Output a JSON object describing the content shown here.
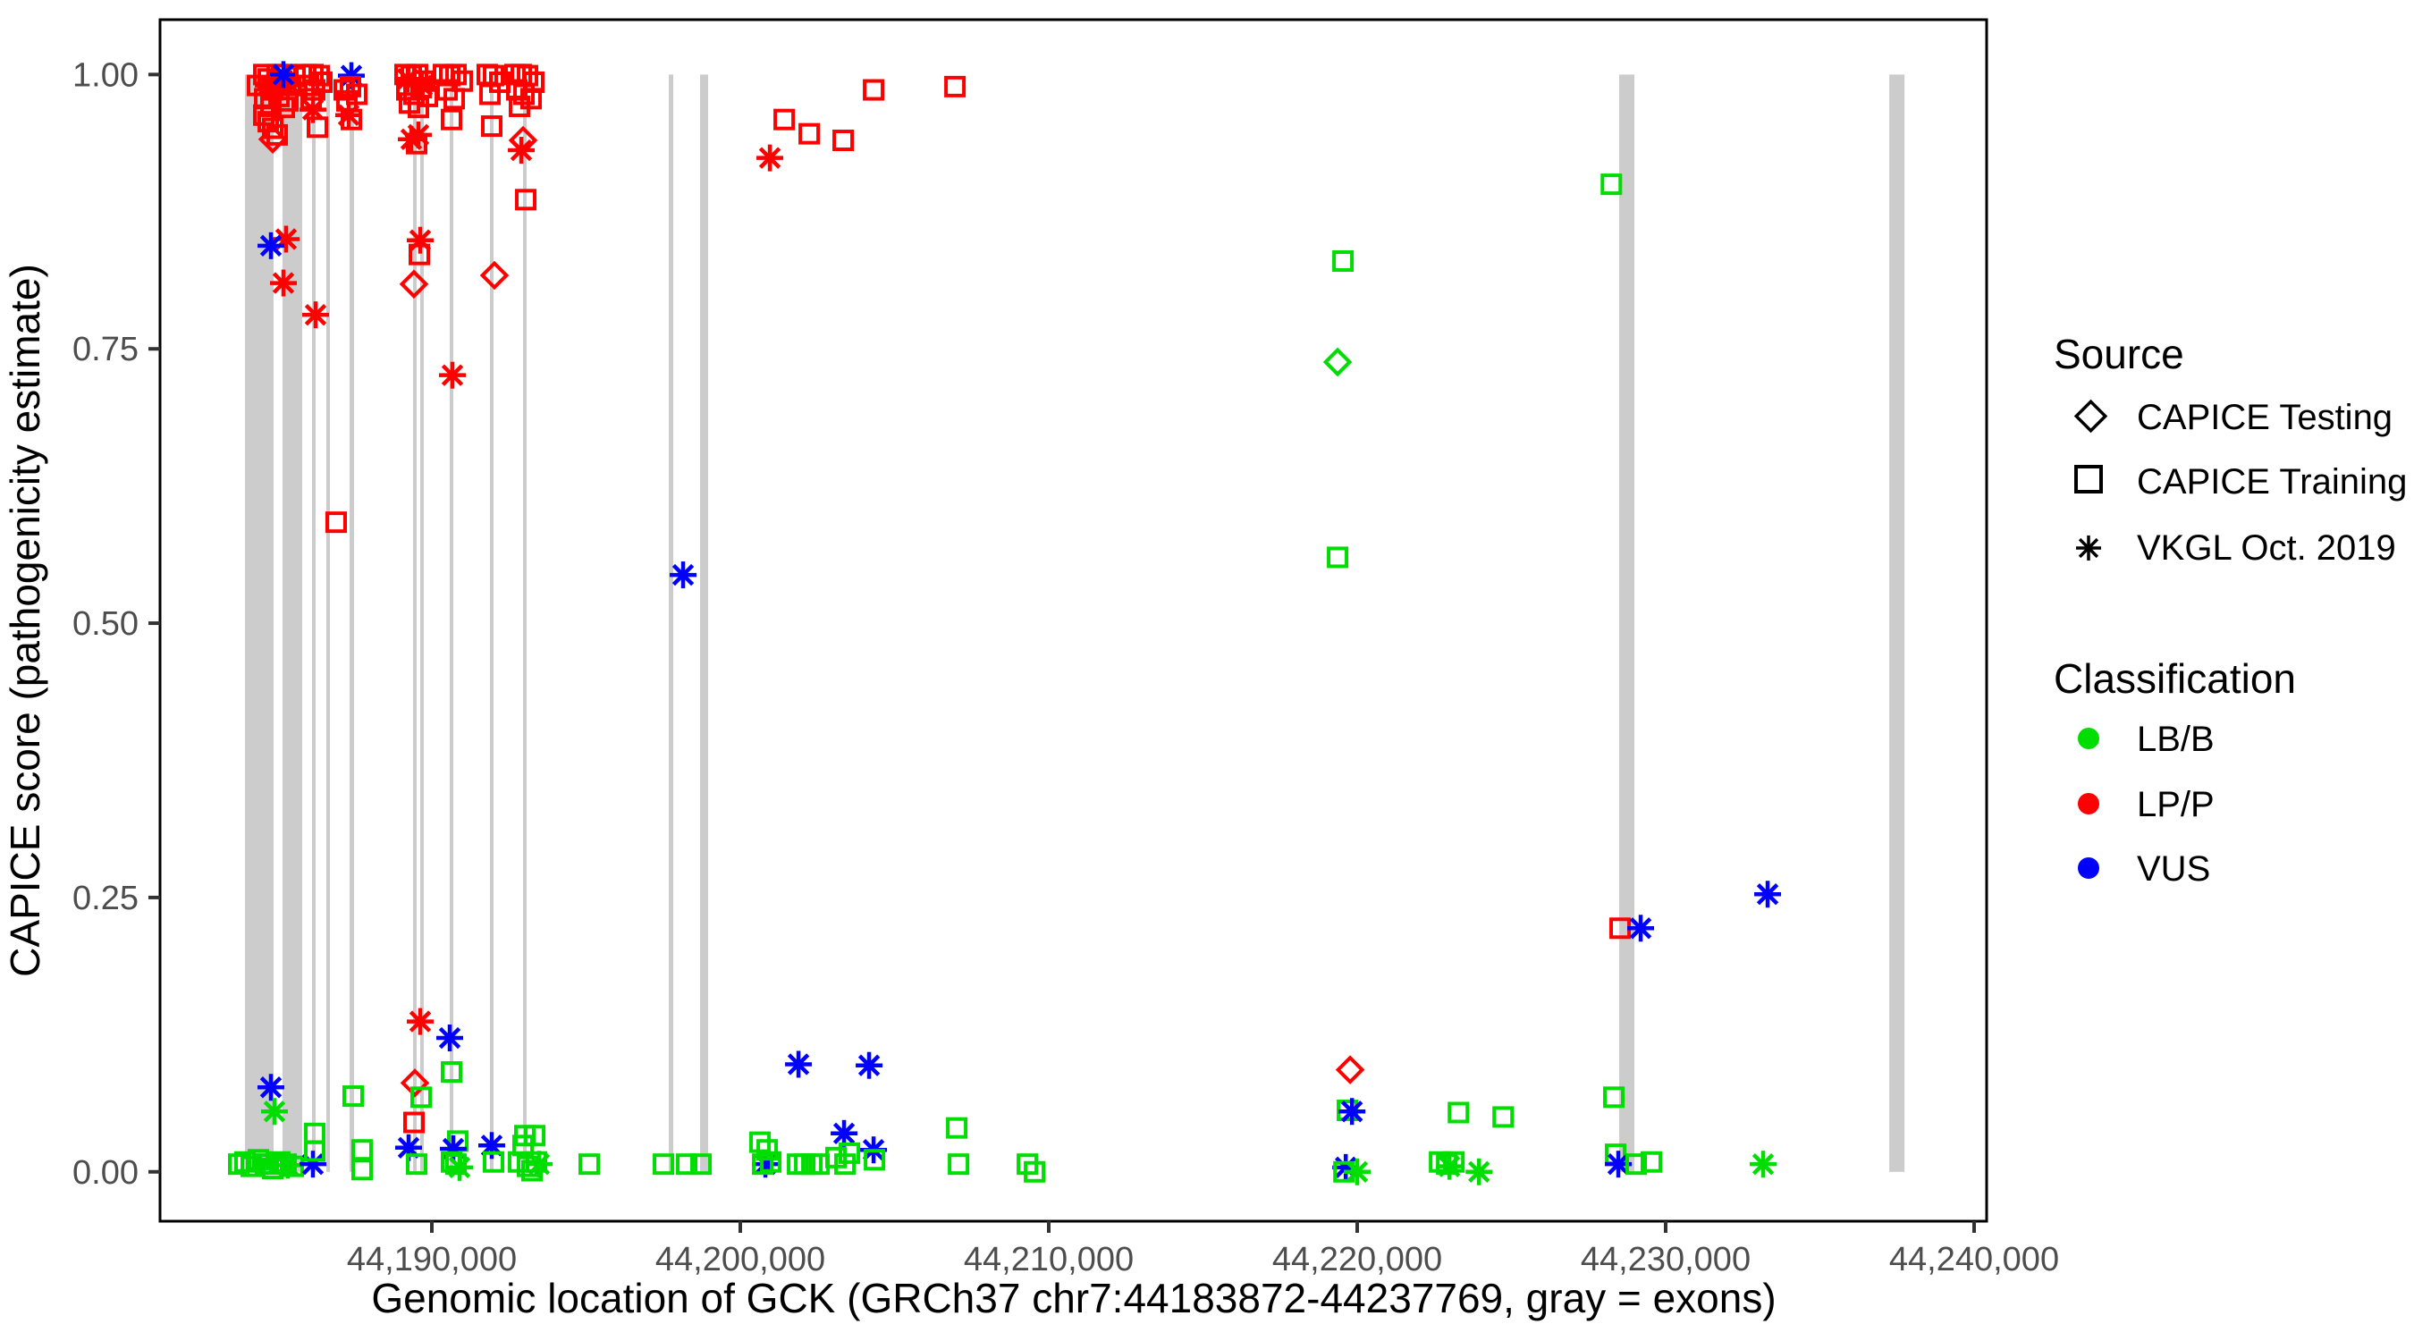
{
  "figure": {
    "background": "#ffffff",
    "panel_border_color": "#000000",
    "exon_color": "#cccccc",
    "tick_color": "#333333",
    "tick_label_color": "#4d4d4d"
  },
  "x_axis": {
    "title": "Genomic location of GCK (GRCh37 chr7:44183872-44237769, gray = exons)",
    "ticks": [
      {
        "value": 44190000,
        "label": "44,190,000"
      },
      {
        "value": 44200000,
        "label": "44,200,000"
      },
      {
        "value": 44210000,
        "label": "44,210,000"
      },
      {
        "value": 44220000,
        "label": "44,220,000"
      },
      {
        "value": 44230000,
        "label": "44,230,000"
      },
      {
        "value": 44240000,
        "label": "44,240,000"
      }
    ]
  },
  "y_axis": {
    "title": "CAPICE score (pathogenicity estimate)",
    "ticks": [
      {
        "value": 0.0,
        "label": "0.00"
      },
      {
        "value": 0.25,
        "label": "0.25"
      },
      {
        "value": 0.5,
        "label": "0.50"
      },
      {
        "value": 0.75,
        "label": "0.75"
      },
      {
        "value": 1.0,
        "label": "1.00"
      }
    ]
  },
  "legend": {
    "source": {
      "title": "Source",
      "items": [
        {
          "label": "CAPICE Testing",
          "marker": "diamond"
        },
        {
          "label": "CAPICE Training",
          "marker": "square"
        },
        {
          "label": "VKGL Oct. 2019",
          "marker": "asterisk"
        }
      ]
    },
    "classification": {
      "title": "Classification",
      "items": [
        {
          "label": "LB/B",
          "color": "#00dd00"
        },
        {
          "label": "LP/P",
          "color": "#ff0000"
        },
        {
          "label": "VUS",
          "color": "#0000ff"
        }
      ]
    }
  },
  "chart_data": {
    "type": "scatter",
    "xlabel": "Genomic location of GCK (GRCh37 chr7:44183872-44237769, gray = exons)",
    "ylabel": "CAPICE score (pathogenicity estimate)",
    "xlim": [
      44181188,
      44240406
    ],
    "ylim": [
      -0.045,
      1.05
    ],
    "grid": false,
    "marker_codes": {
      "sq": "CAPICE Training (open square)",
      "di": "CAPICE Testing (open diamond)",
      "as": "VKGL Oct. 2019 (asterisk)"
    },
    "class_codes": {
      "g": "LB/B",
      "r": "LP/P",
      "b": "VUS"
    },
    "class_colors": {
      "g": "#00dd00",
      "r": "#ff0000",
      "b": "#0000ff"
    },
    "exons_bp": [
      [
        44183941,
        44184869
      ],
      [
        44185159,
        44185796
      ],
      [
        44186115,
        44186231
      ],
      [
        44186579,
        44186695
      ],
      [
        44187333,
        44187478
      ],
      [
        44189391,
        44189507
      ],
      [
        44189623,
        44189710
      ],
      [
        44190580,
        44190638
      ],
      [
        44191884,
        44191942
      ],
      [
        44192957,
        44193044
      ],
      [
        44197682,
        44197827
      ],
      [
        44198697,
        44198958
      ],
      [
        44228494,
        44228987
      ],
      [
        44237250,
        44237743
      ]
    ],
    "points": [
      [
        44184348,
        0.99,
        "sq",
        "r"
      ],
      [
        44184551,
        1.0,
        "sq",
        "r"
      ],
      [
        44184696,
        0.996,
        "sq",
        "r"
      ],
      [
        44184841,
        0.986,
        "sq",
        "r"
      ],
      [
        44184986,
        1.0,
        "sq",
        "r"
      ],
      [
        44185130,
        0.994,
        "sq",
        "r"
      ],
      [
        44185275,
        1.0,
        "sq",
        "r"
      ],
      [
        44185420,
        0.99,
        "sq",
        "r"
      ],
      [
        44185565,
        0.998,
        "sq",
        "r"
      ],
      [
        44184580,
        0.978,
        "sq",
        "r"
      ],
      [
        44185044,
        0.98,
        "sq",
        "r"
      ],
      [
        44185333,
        0.976,
        "sq",
        "r"
      ],
      [
        44184783,
        0.971,
        "sq",
        "r"
      ],
      [
        44185217,
        0.97,
        "sq",
        "r"
      ],
      [
        44184551,
        0.963,
        "sq",
        "r"
      ],
      [
        44184696,
        0.957,
        "sq",
        "r"
      ],
      [
        44184841,
        0.951,
        "sq",
        "r"
      ],
      [
        44184986,
        0.945,
        "sq",
        "r"
      ],
      [
        44184986,
        0.996,
        "as",
        "r"
      ],
      [
        44185333,
        0.993,
        "as",
        "r"
      ],
      [
        44184696,
        0.99,
        "as",
        "r"
      ],
      [
        44185188,
        1.0,
        "as",
        "b"
      ],
      [
        44184841,
        0.941,
        "di",
        "r"
      ],
      [
        44185275,
        0.85,
        "as",
        "r"
      ],
      [
        44184783,
        0.844,
        "as",
        "b"
      ],
      [
        44185188,
        0.81,
        "as",
        "r"
      ],
      [
        44186231,
        0.781,
        "as",
        "r"
      ],
      [
        44186898,
        0.592,
        "sq",
        "r"
      ],
      [
        44185913,
        1.0,
        "sq",
        "r"
      ],
      [
        44186145,
        1.0,
        "sq",
        "r"
      ],
      [
        44186348,
        0.999,
        "sq",
        "r"
      ],
      [
        44186000,
        0.99,
        "sq",
        "r"
      ],
      [
        44186203,
        0.986,
        "sq",
        "r"
      ],
      [
        44186435,
        0.993,
        "sq",
        "r"
      ],
      [
        44186087,
        0.978,
        "sq",
        "r"
      ],
      [
        44186290,
        0.952,
        "sq",
        "r"
      ],
      [
        44186145,
        0.968,
        "as",
        "r"
      ],
      [
        44187391,
        0.999,
        "as",
        "b"
      ],
      [
        44187159,
        0.986,
        "sq",
        "r"
      ],
      [
        44187362,
        0.989,
        "sq",
        "r"
      ],
      [
        44187565,
        0.982,
        "sq",
        "r"
      ],
      [
        44187246,
        0.976,
        "sq",
        "r"
      ],
      [
        44187391,
        0.959,
        "sq",
        "r"
      ],
      [
        44187304,
        0.963,
        "as",
        "r"
      ],
      [
        44189130,
        1.0,
        "sq",
        "r"
      ],
      [
        44189333,
        0.999,
        "sq",
        "r"
      ],
      [
        44189536,
        1.0,
        "sq",
        "r"
      ],
      [
        44189739,
        0.994,
        "sq",
        "r"
      ],
      [
        44189188,
        0.986,
        "sq",
        "r"
      ],
      [
        44189420,
        0.982,
        "sq",
        "r"
      ],
      [
        44189652,
        0.988,
        "sq",
        "r"
      ],
      [
        44189855,
        0.98,
        "sq",
        "r"
      ],
      [
        44189275,
        0.974,
        "sq",
        "r"
      ],
      [
        44189565,
        0.97,
        "sq",
        "r"
      ],
      [
        44189507,
        0.937,
        "sq",
        "r"
      ],
      [
        44189594,
        0.836,
        "sq",
        "r"
      ],
      [
        44189217,
        0.996,
        "as",
        "r"
      ],
      [
        44189681,
        0.99,
        "as",
        "r"
      ],
      [
        44189333,
        0.941,
        "as",
        "r"
      ],
      [
        44189565,
        0.945,
        "as",
        "r"
      ],
      [
        44189623,
        0.849,
        "as",
        "r"
      ],
      [
        44189420,
        0.809,
        "di",
        "r"
      ],
      [
        44190377,
        1.0,
        "sq",
        "r"
      ],
      [
        44190580,
        0.999,
        "sq",
        "r"
      ],
      [
        44190783,
        1.0,
        "sq",
        "r"
      ],
      [
        44190986,
        0.994,
        "sq",
        "r"
      ],
      [
        44190493,
        0.986,
        "sq",
        "r"
      ],
      [
        44190725,
        0.978,
        "sq",
        "r"
      ],
      [
        44190638,
        0.959,
        "sq",
        "r"
      ],
      [
        44190667,
        0.726,
        "as",
        "r"
      ],
      [
        44191797,
        1.0,
        "sq",
        "r"
      ],
      [
        44192000,
        0.999,
        "sq",
        "r"
      ],
      [
        44192203,
        0.993,
        "sq",
        "r"
      ],
      [
        44191884,
        0.982,
        "sq",
        "r"
      ],
      [
        44191942,
        0.953,
        "sq",
        "r"
      ],
      [
        44192029,
        0.817,
        "di",
        "r"
      ],
      [
        44192696,
        1.0,
        "sq",
        "r"
      ],
      [
        44192899,
        1.0,
        "sq",
        "r"
      ],
      [
        44193102,
        0.999,
        "sq",
        "r"
      ],
      [
        44193304,
        0.993,
        "sq",
        "r"
      ],
      [
        44192754,
        0.986,
        "sq",
        "r"
      ],
      [
        44192986,
        0.982,
        "sq",
        "r"
      ],
      [
        44193217,
        0.978,
        "sq",
        "r"
      ],
      [
        44192841,
        0.971,
        "sq",
        "r"
      ],
      [
        44192957,
        0.94,
        "di",
        "r"
      ],
      [
        44192899,
        0.931,
        "as",
        "r"
      ],
      [
        44193044,
        0.886,
        "sq",
        "r"
      ],
      [
        44201423,
        0.959,
        "sq",
        "r"
      ],
      [
        44202234,
        0.946,
        "sq",
        "r"
      ],
      [
        44203335,
        0.94,
        "sq",
        "r"
      ],
      [
        44204321,
        0.986,
        "sq",
        "r"
      ],
      [
        44206959,
        0.989,
        "sq",
        "r"
      ],
      [
        44200958,
        0.924,
        "as",
        "r"
      ],
      [
        44198146,
        0.544,
        "as",
        "b"
      ],
      [
        44189623,
        0.137,
        "as",
        "r"
      ],
      [
        44190580,
        0.122,
        "as",
        "b"
      ],
      [
        44190638,
        0.091,
        "sq",
        "g"
      ],
      [
        44189449,
        0.081,
        "di",
        "r"
      ],
      [
        44189652,
        0.068,
        "sq",
        "g"
      ],
      [
        44189420,
        0.045,
        "sq",
        "r"
      ],
      [
        44189246,
        0.022,
        "as",
        "b"
      ],
      [
        44189507,
        0.007,
        "sq",
        "g"
      ],
      [
        44184782,
        0.077,
        "as",
        "b"
      ],
      [
        44184898,
        0.055,
        "as",
        "g"
      ],
      [
        44183739,
        0.007,
        "sq",
        "g"
      ],
      [
        44183942,
        0.009,
        "sq",
        "g"
      ],
      [
        44184145,
        0.005,
        "sq",
        "g"
      ],
      [
        44184377,
        0.011,
        "sq",
        "g"
      ],
      [
        44184609,
        0.007,
        "sq",
        "g"
      ],
      [
        44184841,
        0.003,
        "sq",
        "g"
      ],
      [
        44185072,
        0.009,
        "sq",
        "g"
      ],
      [
        44185275,
        0.007,
        "sq",
        "g"
      ],
      [
        44185507,
        0.005,
        "sq",
        "g"
      ],
      [
        44185333,
        0.006,
        "as",
        "g"
      ],
      [
        44186144,
        0.007,
        "as",
        "b"
      ],
      [
        44186203,
        0.035,
        "sq",
        "g"
      ],
      [
        44186203,
        0.019,
        "sq",
        "g"
      ],
      [
        44187449,
        0.069,
        "sq",
        "g"
      ],
      [
        44187739,
        0.02,
        "sq",
        "g"
      ],
      [
        44187739,
        0.002,
        "sq",
        "g"
      ],
      [
        44190841,
        0.028,
        "sq",
        "g"
      ],
      [
        44190696,
        0.021,
        "as",
        "b"
      ],
      [
        44190638,
        0.009,
        "sq",
        "g"
      ],
      [
        44190783,
        0.007,
        "sq",
        "g"
      ],
      [
        44190899,
        0.004,
        "as",
        "g"
      ],
      [
        44191942,
        0.024,
        "as",
        "b"
      ],
      [
        44192000,
        0.009,
        "sq",
        "g"
      ],
      [
        44193015,
        0.033,
        "sq",
        "g"
      ],
      [
        44193334,
        0.033,
        "sq",
        "g"
      ],
      [
        44192957,
        0.024,
        "sq",
        "g"
      ],
      [
        44192812,
        0.009,
        "sq",
        "g"
      ],
      [
        44193102,
        0.005,
        "sq",
        "g"
      ],
      [
        44193392,
        0.009,
        "sq",
        "g"
      ],
      [
        44193247,
        0.001,
        "sq",
        "g"
      ],
      [
        44193478,
        0.007,
        "as",
        "g"
      ],
      [
        44195102,
        0.007,
        "sq",
        "g"
      ],
      [
        44197508,
        0.007,
        "sq",
        "g"
      ],
      [
        44198262,
        0.007,
        "sq",
        "g"
      ],
      [
        44198726,
        0.007,
        "sq",
        "g"
      ],
      [
        44201886,
        0.098,
        "as",
        "b"
      ],
      [
        44204176,
        0.097,
        "as",
        "b"
      ],
      [
        44203364,
        0.035,
        "as",
        "b"
      ],
      [
        44204321,
        0.02,
        "as",
        "b"
      ],
      [
        44200813,
        0.007,
        "as",
        "b"
      ],
      [
        44200639,
        0.027,
        "sq",
        "g"
      ],
      [
        44200871,
        0.02,
        "sq",
        "g"
      ],
      [
        44200726,
        0.007,
        "sq",
        "g"
      ],
      [
        44200987,
        0.009,
        "sq",
        "g"
      ],
      [
        44201857,
        0.007,
        "sq",
        "g"
      ],
      [
        44202089,
        0.007,
        "sq",
        "g"
      ],
      [
        44202321,
        0.007,
        "sq",
        "g"
      ],
      [
        44202553,
        0.007,
        "sq",
        "g"
      ],
      [
        44203103,
        0.013,
        "sq",
        "g"
      ],
      [
        44203393,
        0.007,
        "sq",
        "g"
      ],
      [
        44203538,
        0.017,
        "sq",
        "g"
      ],
      [
        44204350,
        0.011,
        "sq",
        "g"
      ],
      [
        44207017,
        0.04,
        "sq",
        "g"
      ],
      [
        44207075,
        0.007,
        "sq",
        "g"
      ],
      [
        44209307,
        0.007,
        "sq",
        "g"
      ],
      [
        44209539,
        0.0,
        "sq",
        "g"
      ],
      [
        44219538,
        0.83,
        "sq",
        "g"
      ],
      [
        44219364,
        0.738,
        "di",
        "g"
      ],
      [
        44219364,
        0.56,
        "sq",
        "g"
      ],
      [
        44219770,
        0.093,
        "di",
        "r"
      ],
      [
        44219683,
        0.056,
        "sq",
        "g"
      ],
      [
        44219831,
        0.055,
        "as",
        "b"
      ],
      [
        44219628,
        0.004,
        "as",
        "b"
      ],
      [
        44220000,
        0.0,
        "as",
        "g"
      ],
      [
        44219570,
        0.0,
        "sq",
        "g"
      ],
      [
        44223282,
        0.054,
        "sq",
        "g"
      ],
      [
        44224731,
        0.05,
        "sq",
        "g"
      ],
      [
        44222671,
        0.009,
        "sq",
        "g"
      ],
      [
        44222903,
        0.007,
        "sq",
        "g"
      ],
      [
        44223135,
        0.009,
        "sq",
        "g"
      ],
      [
        44222990,
        0.005,
        "as",
        "g"
      ],
      [
        44223949,
        0.0,
        "as",
        "g"
      ],
      [
        44228240,
        0.9,
        "sq",
        "g"
      ],
      [
        44228523,
        0.222,
        "sq",
        "r"
      ],
      [
        44229190,
        0.222,
        "as",
        "b"
      ],
      [
        44233306,
        0.253,
        "as",
        "b"
      ],
      [
        44228320,
        0.068,
        "sq",
        "g"
      ],
      [
        44228378,
        0.016,
        "sq",
        "g"
      ],
      [
        44228465,
        0.007,
        "as",
        "b"
      ],
      [
        44229044,
        0.007,
        "sq",
        "g"
      ],
      [
        44229537,
        0.009,
        "sq",
        "g"
      ],
      [
        44233161,
        0.007,
        "as",
        "g"
      ]
    ]
  }
}
